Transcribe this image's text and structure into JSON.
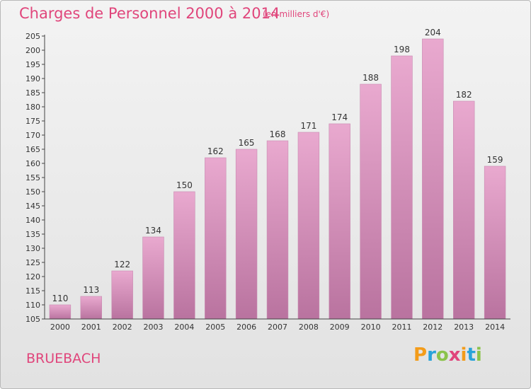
{
  "header": {
    "title": "Charges de Personnel 2000 à 2014",
    "unit": "(en milliers d'€)"
  },
  "footer": {
    "commune": "BRUEBACH",
    "logo_letters": [
      "P",
      "r",
      "o",
      "x",
      "i",
      "t",
      "i"
    ]
  },
  "colors": {
    "accent": "#e0457b",
    "bar_top": "#e9a9cf",
    "bar_bottom": "#b9739f",
    "logo": [
      "#f39c1a",
      "#29a3d9",
      "#8bc34a",
      "#e0457b",
      "#f39c1a",
      "#29a3d9",
      "#8bc34a"
    ]
  },
  "chart_data": {
    "type": "bar",
    "title": "Charges de Personnel 2000 à 2014",
    "unit": "(en milliers d'€)",
    "categories": [
      "2000",
      "2001",
      "2002",
      "2003",
      "2004",
      "2005",
      "2006",
      "2007",
      "2008",
      "2009",
      "2010",
      "2011",
      "2012",
      "2013",
      "2014"
    ],
    "values": [
      110,
      113,
      122,
      134,
      150,
      162,
      165,
      168,
      171,
      174,
      188,
      198,
      204,
      182,
      159
    ],
    "ylim": [
      105,
      205
    ],
    "ytick_step": 5,
    "grid": false,
    "data_labels": true
  }
}
